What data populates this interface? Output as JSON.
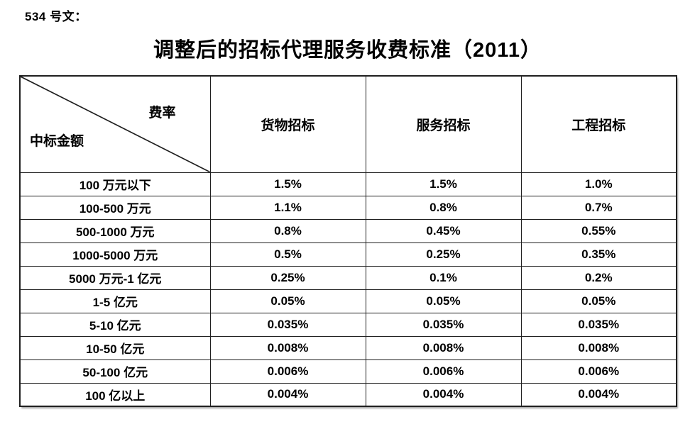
{
  "page": {
    "background_color": "#ffffff",
    "text_color": "#000000",
    "border_color": "#1f1f1f",
    "doc_label": "534 号文：",
    "title": "调整后的招标代理服务收费标准（2011）"
  },
  "table": {
    "corner": {
      "top_right": "费率",
      "bottom_left": "中标金额"
    },
    "columns": [
      "货物招标",
      "服务招标",
      "工程招标"
    ],
    "rows": [
      {
        "amount": "100 万元以下",
        "values": [
          "1.5%",
          "1.5%",
          "1.0%"
        ]
      },
      {
        "amount": "100-500 万元",
        "values": [
          "1.1%",
          "0.8%",
          "0.7%"
        ]
      },
      {
        "amount": "500-1000 万元",
        "values": [
          "0.8%",
          "0.45%",
          "0.55%"
        ]
      },
      {
        "amount": "1000-5000 万元",
        "values": [
          "0.5%",
          "0.25%",
          "0.35%"
        ]
      },
      {
        "amount": "5000 万元-1 亿元",
        "values": [
          "0.25%",
          "0.1%",
          "0.2%"
        ]
      },
      {
        "amount": "1-5 亿元",
        "values": [
          "0.05%",
          "0.05%",
          "0.05%"
        ]
      },
      {
        "amount": "5-10 亿元",
        "values": [
          "0.035%",
          "0.035%",
          "0.035%"
        ]
      },
      {
        "amount": "10-50 亿元",
        "values": [
          "0.008%",
          "0.008%",
          "0.008%"
        ]
      },
      {
        "amount": "50-100 亿元",
        "values": [
          "0.006%",
          "0.006%",
          "0.006%"
        ]
      },
      {
        "amount": "100 亿以上",
        "values": [
          "0.004%",
          "0.004%",
          "0.004%"
        ]
      }
    ]
  }
}
